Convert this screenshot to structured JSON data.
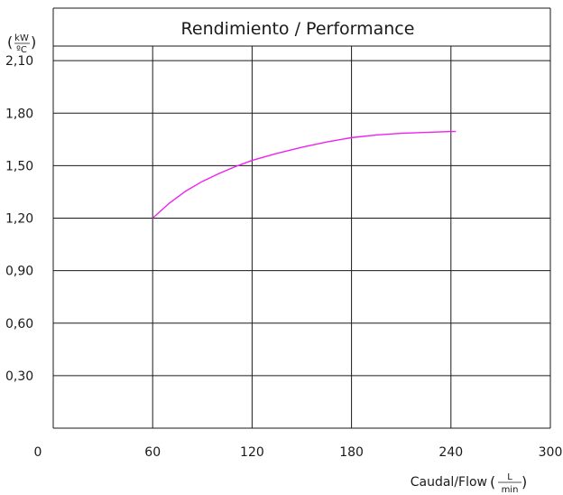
{
  "chart_data": {
    "type": "line",
    "title": "Rendimiento / Performance",
    "xlabel": "Caudal/Flow",
    "x_unit": {
      "numerator": "L",
      "denominator": "min"
    },
    "y_unit": {
      "numerator": "kW",
      "denominator": "ºC"
    },
    "xlim": [
      0,
      300
    ],
    "ylim": [
      0,
      2.4
    ],
    "x_ticks": [
      "0",
      "60",
      "120",
      "180",
      "240",
      "300"
    ],
    "y_ticks": [
      "0,30",
      "0,60",
      "0,90",
      "1,20",
      "1,50",
      "1,80",
      "2,10"
    ],
    "grid": true,
    "series": [
      {
        "color": "#ee22ee",
        "x": [
          60,
          70,
          80,
          90,
          100,
          110,
          120,
          135,
          150,
          165,
          180,
          195,
          210,
          225,
          240,
          243
        ],
        "y": [
          1.2,
          1.285,
          1.355,
          1.41,
          1.455,
          1.495,
          1.53,
          1.57,
          1.605,
          1.635,
          1.66,
          1.675,
          1.685,
          1.69,
          1.695,
          1.695
        ]
      }
    ]
  }
}
